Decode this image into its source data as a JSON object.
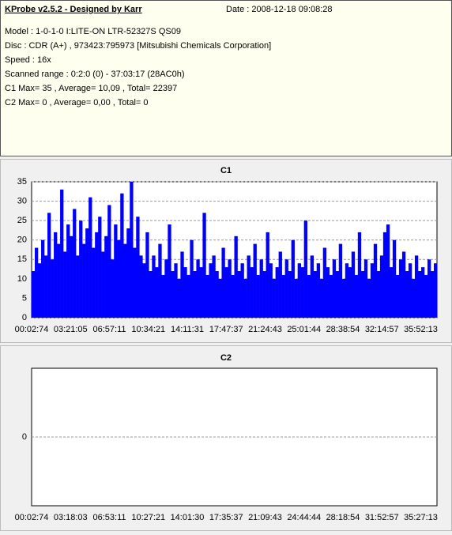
{
  "header": {
    "title": "KProbe v2.5.2 - Designed by Karr",
    "date": "Date : 2008-12-18 09:08:28",
    "lines": [
      "Model : 1-0-1-0 I:LITE-ON LTR-52327S     QS09",
      "Disc : CDR (A+) , 973423:795973 [Mitsubishi Chemicals Corporation]",
      "Speed : 16x",
      "Scanned range : 0:2:0 (0) - 37:03:17 (28AC0h)",
      "C1 Max= 35 , Average= 10,09 , Total= 22397",
      "C2 Max= 0 , Average= 0,00 , Total= 0"
    ]
  },
  "chart_data": [
    {
      "type": "bar",
      "title": "C1",
      "color": "#0000ff",
      "ylim": [
        0,
        35
      ],
      "yticks": [
        0,
        5,
        10,
        15,
        20,
        25,
        30,
        35
      ],
      "grid": true,
      "xticks": [
        "00:02:74",
        "03:21:05",
        "06:57:11",
        "10:34:21",
        "14:11:31",
        "17:47:37",
        "21:24:43",
        "25:01:44",
        "28:38:54",
        "32:14:57",
        "35:52:13"
      ],
      "values": [
        12,
        18,
        14,
        20,
        16,
        27,
        15,
        22,
        19,
        33,
        17,
        24,
        21,
        28,
        16,
        25,
        19,
        23,
        31,
        18,
        22,
        26,
        17,
        21,
        29,
        15,
        24,
        20,
        32,
        19,
        23,
        35,
        18,
        26,
        16,
        14,
        22,
        12,
        16,
        13,
        19,
        11,
        15,
        24,
        12,
        14,
        10,
        17,
        13,
        11,
        20,
        12,
        15,
        13,
        27,
        11,
        14,
        16,
        12,
        10,
        18,
        13,
        15,
        11,
        21,
        12,
        14,
        10,
        16,
        13,
        19,
        11,
        15,
        12,
        22,
        14,
        10,
        13,
        17,
        11,
        15,
        12,
        20,
        10,
        14,
        13,
        25,
        11,
        16,
        12,
        14,
        10,
        18,
        13,
        11,
        15,
        12,
        19,
        10,
        14,
        13,
        17,
        11,
        22,
        12,
        15,
        10,
        14,
        19,
        12,
        16,
        22,
        24,
        13,
        20,
        11,
        15,
        17,
        12,
        14,
        10,
        16,
        12,
        13,
        11,
        15,
        12,
        14
      ]
    },
    {
      "type": "bar",
      "title": "C2",
      "color": "#0000ff",
      "ylim": [
        -1,
        1
      ],
      "yticks": [
        0
      ],
      "grid": true,
      "xticks": [
        "00:02:74",
        "03:18:03",
        "06:53:11",
        "10:27:21",
        "14:01:30",
        "17:35:37",
        "21:09:43",
        "24:44:44",
        "28:18:54",
        "31:52:57",
        "35:27:13"
      ],
      "values": []
    }
  ]
}
